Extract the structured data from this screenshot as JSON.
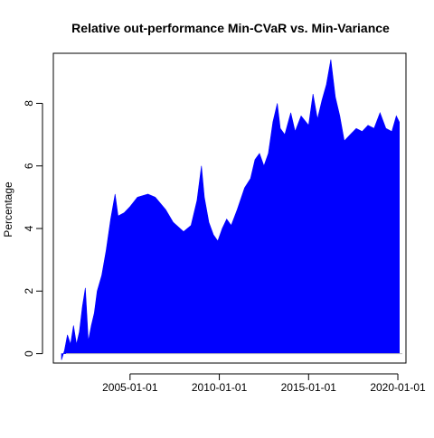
{
  "chart_data": {
    "type": "area",
    "title": "Relative out-performance Min-CVaR vs. Min-Variance",
    "xlabel": "",
    "ylabel": "Percentage",
    "x_ticks": [
      "2005-01-01",
      "2010-01-01",
      "2015-01-01",
      "2020-01-01"
    ],
    "y_ticks": [
      0,
      2,
      4,
      6,
      8
    ],
    "xlim": [
      "2000-09-15",
      "2020-06-15"
    ],
    "ylim": [
      -0.3,
      9.6
    ],
    "grid": false,
    "legend": "none",
    "fill_color": "#0000ff",
    "baseline_color": "#bebebe",
    "baseline": 0,
    "series": [
      {
        "points": [
          [
            "2001-03-01",
            -0.2
          ],
          [
            "2001-05-01",
            0.1
          ],
          [
            "2001-07-01",
            0.6
          ],
          [
            "2001-09-01",
            0.3
          ],
          [
            "2001-11-01",
            0.9
          ],
          [
            "2002-01-01",
            0.3
          ],
          [
            "2002-03-01",
            0.7
          ],
          [
            "2002-05-01",
            1.5
          ],
          [
            "2002-07-01",
            2.1
          ],
          [
            "2002-09-01",
            0.4
          ],
          [
            "2002-11-01",
            0.9
          ],
          [
            "2003-01-01",
            1.3
          ],
          [
            "2003-03-01",
            2.0
          ],
          [
            "2003-06-01",
            2.5
          ],
          [
            "2003-09-01",
            3.3
          ],
          [
            "2003-12-01",
            4.3
          ],
          [
            "2004-03-01",
            5.1
          ],
          [
            "2004-05-01",
            4.4
          ],
          [
            "2004-09-01",
            4.5
          ],
          [
            "2005-01-01",
            4.7
          ],
          [
            "2005-06-01",
            5.0
          ],
          [
            "2006-01-01",
            5.1
          ],
          [
            "2006-06-01",
            5.0
          ],
          [
            "2007-01-01",
            4.6
          ],
          [
            "2007-06-01",
            4.2
          ],
          [
            "2008-01-01",
            3.9
          ],
          [
            "2008-06-01",
            4.1
          ],
          [
            "2008-10-01",
            4.9
          ],
          [
            "2009-01-01",
            6.0
          ],
          [
            "2009-03-01",
            5.0
          ],
          [
            "2009-06-01",
            4.2
          ],
          [
            "2009-09-01",
            3.8
          ],
          [
            "2009-12-01",
            3.6
          ],
          [
            "2010-03-01",
            4.0
          ],
          [
            "2010-06-01",
            4.3
          ],
          [
            "2010-09-01",
            4.1
          ],
          [
            "2011-01-01",
            4.6
          ],
          [
            "2011-06-01",
            5.3
          ],
          [
            "2011-10-01",
            5.6
          ],
          [
            "2012-01-01",
            6.2
          ],
          [
            "2012-04-01",
            6.4
          ],
          [
            "2012-07-01",
            6.0
          ],
          [
            "2012-10-01",
            6.4
          ],
          [
            "2013-01-01",
            7.4
          ],
          [
            "2013-04-01",
            8.0
          ],
          [
            "2013-06-01",
            7.2
          ],
          [
            "2013-09-01",
            7.0
          ],
          [
            "2014-01-01",
            7.7
          ],
          [
            "2014-04-01",
            7.1
          ],
          [
            "2014-08-01",
            7.6
          ],
          [
            "2015-01-01",
            7.3
          ],
          [
            "2015-04-01",
            8.3
          ],
          [
            "2015-07-01",
            7.5
          ],
          [
            "2015-10-01",
            8.1
          ],
          [
            "2016-01-01",
            8.6
          ],
          [
            "2016-04-01",
            9.4
          ],
          [
            "2016-07-01",
            8.2
          ],
          [
            "2016-10-01",
            7.6
          ],
          [
            "2017-01-01",
            6.8
          ],
          [
            "2017-05-01",
            7.0
          ],
          [
            "2017-09-01",
            7.2
          ],
          [
            "2018-01-01",
            7.1
          ],
          [
            "2018-05-01",
            7.3
          ],
          [
            "2018-09-01",
            7.2
          ],
          [
            "2019-01-01",
            7.7
          ],
          [
            "2019-05-01",
            7.2
          ],
          [
            "2019-09-01",
            7.1
          ],
          [
            "2019-12-01",
            7.6
          ],
          [
            "2020-02-01",
            7.4
          ]
        ]
      }
    ]
  }
}
